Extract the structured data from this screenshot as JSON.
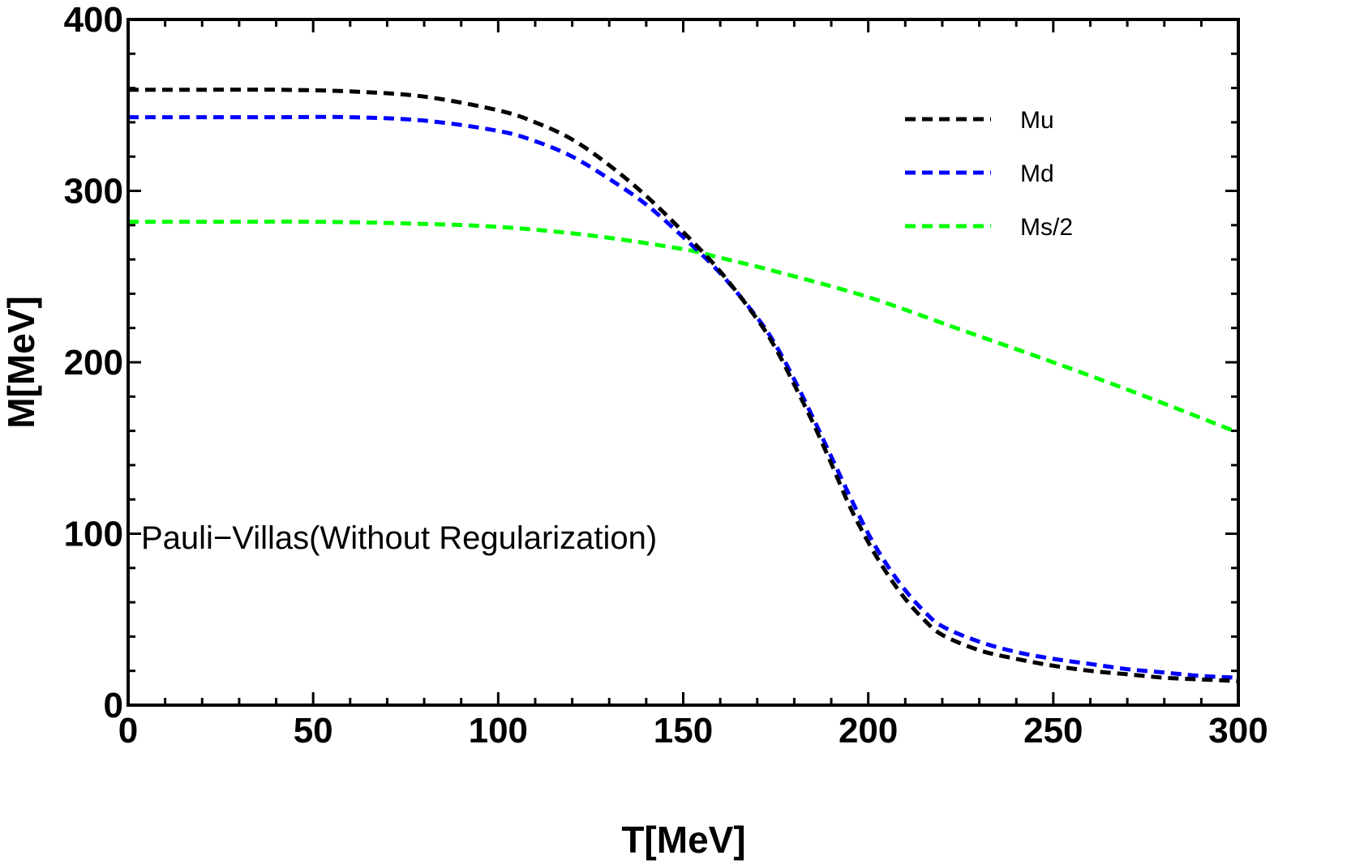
{
  "chart_data": {
    "type": "line",
    "title": "",
    "xlabel": "T[MeV]",
    "ylabel": "M[MeV]",
    "xlim": [
      0,
      300
    ],
    "ylim": [
      0,
      400
    ],
    "xticks": [
      0,
      50,
      100,
      150,
      200,
      250,
      300
    ],
    "yticks": [
      0,
      100,
      200,
      300,
      400
    ],
    "xtick_labels": [
      "0",
      "50",
      "100",
      "150",
      "200",
      "250",
      "300"
    ],
    "ytick_labels": [
      "0",
      "100",
      "200",
      "300",
      "400"
    ],
    "grid": false,
    "legend_position": "top-right",
    "annotation": "Pauli−Villas(Without Regularization)",
    "series": [
      {
        "name": "Mu",
        "color": "#000000",
        "style": "dashed",
        "x": [
          0,
          20,
          40,
          60,
          80,
          100,
          110,
          120,
          130,
          140,
          150,
          160,
          170,
          175,
          180,
          185,
          190,
          195,
          200,
          205,
          210,
          215,
          220,
          230,
          240,
          250,
          260,
          270,
          280,
          290,
          300
        ],
        "y": [
          359,
          359,
          359,
          358,
          355,
          347,
          340,
          330,
          315,
          297,
          276,
          253,
          225,
          208,
          187,
          165,
          141,
          116,
          95,
          77,
          62,
          50,
          41,
          32,
          27,
          23,
          20,
          18,
          16,
          15,
          14
        ]
      },
      {
        "name": "Md",
        "color": "#0000ff",
        "style": "dashed",
        "x": [
          0,
          20,
          40,
          60,
          80,
          100,
          110,
          120,
          130,
          140,
          150,
          160,
          170,
          175,
          180,
          185,
          190,
          195,
          200,
          205,
          210,
          215,
          220,
          230,
          240,
          250,
          260,
          270,
          280,
          290,
          300
        ],
        "y": [
          343,
          343,
          343,
          343,
          341,
          335,
          329,
          320,
          307,
          292,
          273,
          252,
          226,
          210,
          190,
          168,
          145,
          122,
          100,
          82,
          67,
          55,
          46,
          37,
          31,
          27,
          24,
          21,
          19,
          17,
          16
        ]
      },
      {
        "name": "Ms/2",
        "color": "#00ff00",
        "style": "dashed",
        "x": [
          0,
          25,
          50,
          75,
          100,
          125,
          150,
          160,
          175,
          200,
          225,
          250,
          275,
          300
        ],
        "y": [
          282,
          282,
          282,
          281,
          279,
          274,
          266,
          261,
          253,
          238,
          219,
          200,
          180,
          159
        ]
      }
    ]
  }
}
